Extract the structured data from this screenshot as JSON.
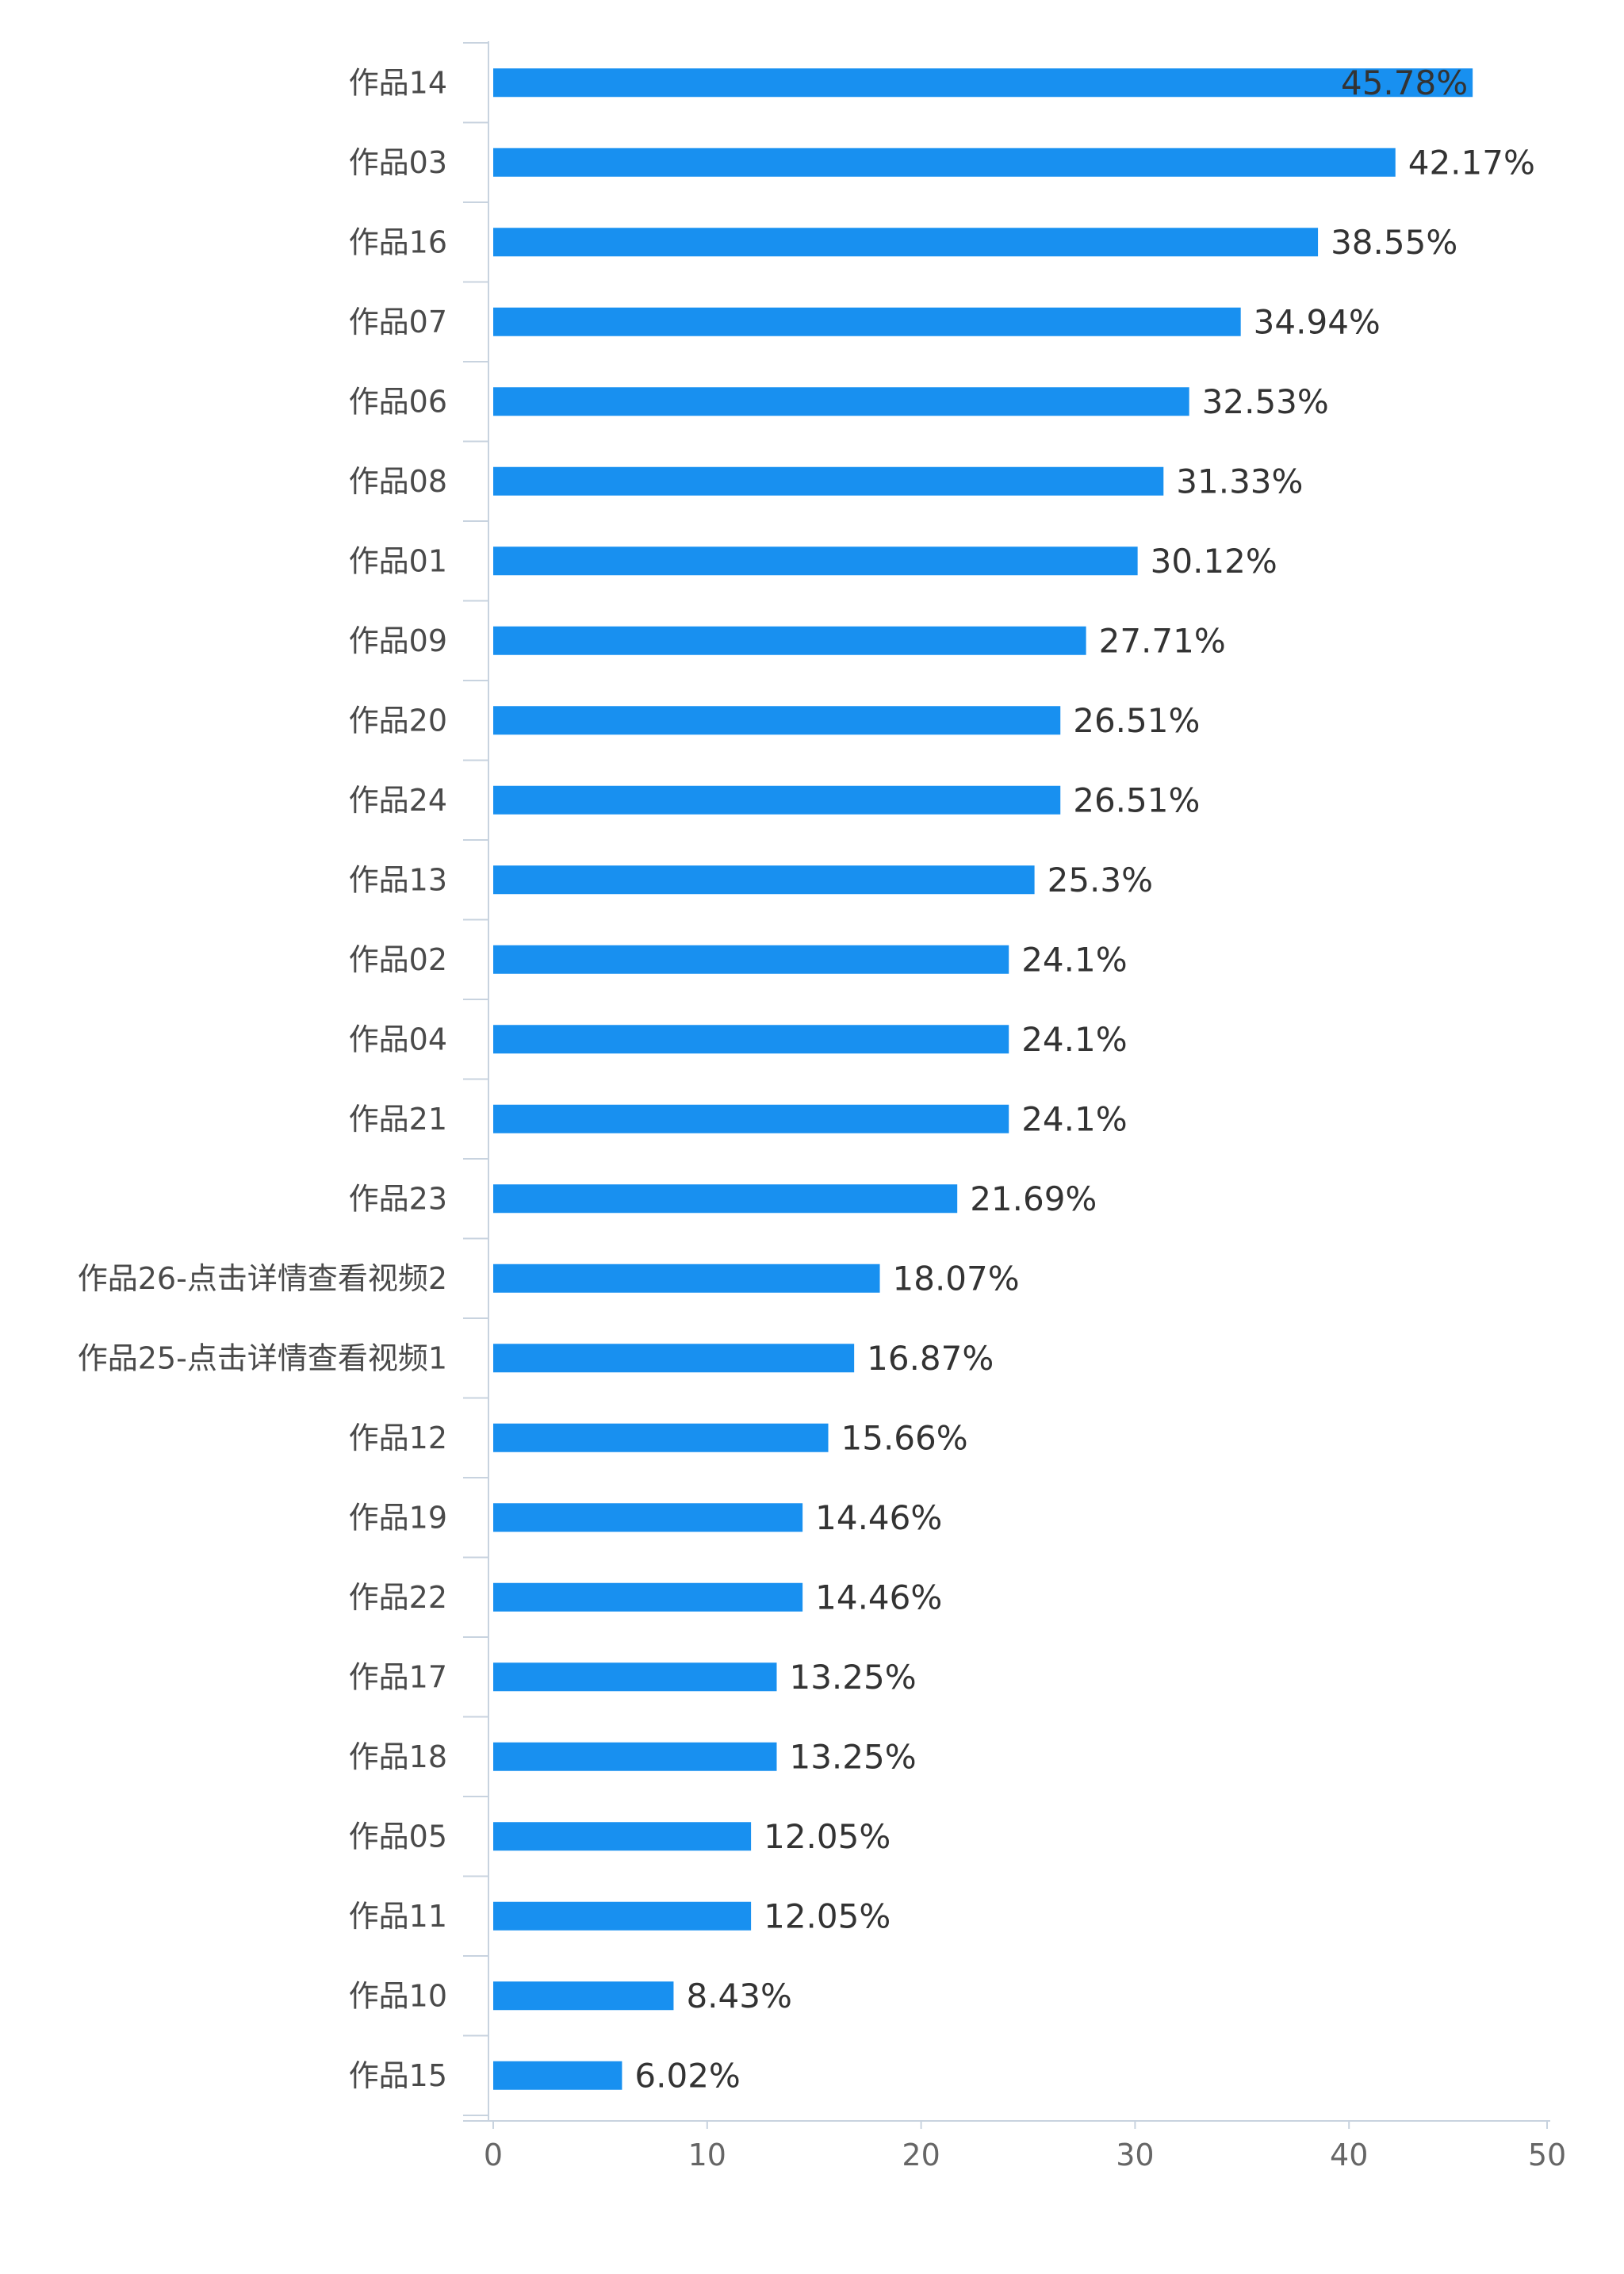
{
  "chart_data": {
    "type": "bar",
    "orientation": "horizontal",
    "categories": [
      "作品14",
      "作品03",
      "作品16",
      "作品07",
      "作品06",
      "作品08",
      "作品01",
      "作品09",
      "作品20",
      "作品24",
      "作品13",
      "作品02",
      "作品04",
      "作品21",
      "作品23",
      "作品26-点击详情查看视频2",
      "作品25-点击详情查看视频1",
      "作品12",
      "作品19",
      "作品22",
      "作品17",
      "作品18",
      "作品05",
      "作品11",
      "作品10",
      "作品15"
    ],
    "values": [
      45.78,
      42.17,
      38.55,
      34.94,
      32.53,
      31.33,
      30.12,
      27.71,
      26.51,
      26.51,
      25.3,
      24.1,
      24.1,
      24.1,
      21.69,
      18.07,
      16.87,
      15.66,
      14.46,
      14.46,
      13.25,
      13.25,
      12.05,
      12.05,
      8.43,
      6.02
    ],
    "value_labels": [
      "45.78%",
      "42.17%",
      "38.55%",
      "34.94%",
      "32.53%",
      "31.33%",
      "30.12%",
      "27.71%",
      "26.51%",
      "26.51%",
      "25.3%",
      "24.1%",
      "24.1%",
      "24.1%",
      "21.69%",
      "18.07%",
      "16.87%",
      "15.66%",
      "14.46%",
      "14.46%",
      "13.25%",
      "13.25%",
      "12.05%",
      "12.05%",
      "8.43%",
      "6.02%"
    ],
    "xlim": [
      0,
      50
    ],
    "xticks": [
      "0",
      "10",
      "20",
      "30",
      "40",
      "50"
    ],
    "xlabel": "",
    "ylabel": "",
    "title": "",
    "grid": false,
    "colors": {
      "bar": "#1890f0",
      "axis": "#c8d3df",
      "text": "#4a4a4a"
    }
  }
}
